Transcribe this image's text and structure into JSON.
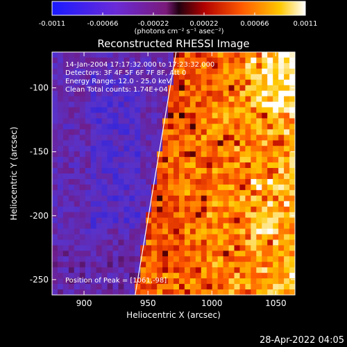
{
  "colorbar": {
    "ticks": [
      "-0.0011",
      "-0.00066",
      "-0.00022",
      "0.00022",
      "0.00066",
      "0.0011"
    ],
    "units": "(photons cm⁻² s⁻¹ asec⁻²)"
  },
  "chart_data": {
    "type": "heatmap",
    "title": "Reconstructed RHESSI Image",
    "xlabel": "Heliocentric X (arcsec)",
    "ylabel": "Heliocentric Y (arcsec)",
    "xlim": [
      875,
      1065
    ],
    "ylim": [
      -262,
      -72
    ],
    "xticks": [
      "900",
      "950",
      "1000",
      "1050"
    ],
    "yticks": [
      "-100",
      "-150",
      "-200",
      "-250"
    ],
    "xtick_values": [
      900,
      950,
      1000,
      1050
    ],
    "ytick_values": [
      -100,
      -150,
      -200,
      -250
    ],
    "colorscale": {
      "min": -0.0011,
      "max": 0.0011,
      "colormap": "blue-purple-red-yellow-white"
    },
    "limb_line": {
      "x": [
        940,
        972
      ],
      "y": [
        -262,
        -72
      ]
    },
    "annotations": [
      "14-Jan-2004 17:17:32.000 to 17:23:32.000",
      "Detectors: 3F 4F 5F 6F 7F 8F, Att 0",
      "Energy Range: 12.0 - 25.0 keV",
      "Clean     Total counts: 1.74E+04"
    ],
    "peak_label": "Position of Peak = [1061,-98]",
    "peak": {
      "x": 1061,
      "y": -98
    }
  },
  "footer": {
    "timestamp": "28-Apr-2022 04:05"
  }
}
